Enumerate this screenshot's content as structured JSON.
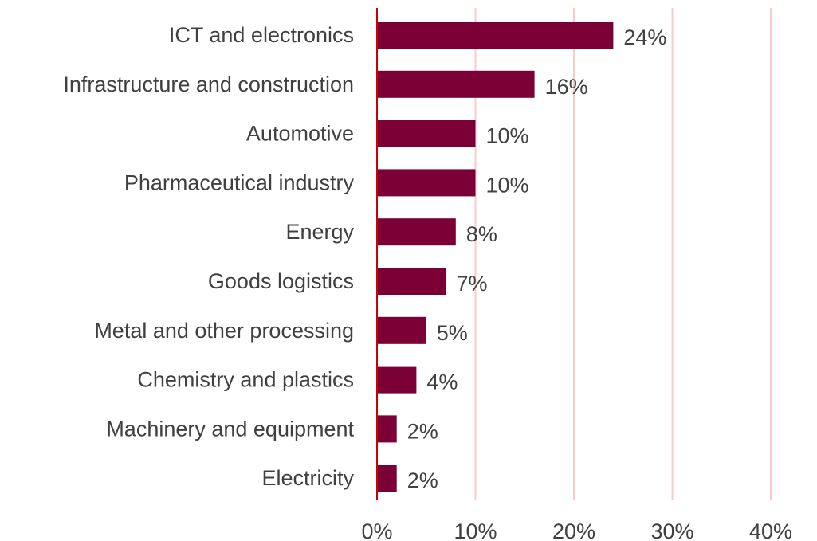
{
  "chart_data": {
    "type": "bar",
    "orientation": "horizontal",
    "categories": [
      "ICT and electronics",
      "Infrastructure and construction",
      "Automotive",
      "Pharmaceutical industry",
      "Energy",
      "Goods logistics",
      "Metal and other processing",
      "Chemistry and plastics",
      "Machinery and equipment",
      "Electricity"
    ],
    "values": [
      24,
      16,
      10,
      10,
      8,
      7,
      5,
      4,
      2,
      2
    ],
    "value_labels": [
      "24%",
      "16%",
      "10%",
      "10%",
      "8%",
      "7%",
      "5%",
      "4%",
      "2%",
      "2%"
    ],
    "xlim": [
      0,
      40
    ],
    "x_ticks": [
      0,
      10,
      20,
      30,
      40
    ],
    "x_tick_labels": [
      "0%",
      "10%",
      "20%",
      "30%",
      "40%"
    ],
    "title": "",
    "xlabel": "",
    "ylabel": "",
    "grid": "vertical",
    "legend": "none",
    "colors": {
      "bar": "#7a0036",
      "axis": "#cc0000",
      "grid": "#f6cccc",
      "text": "#404040"
    }
  }
}
